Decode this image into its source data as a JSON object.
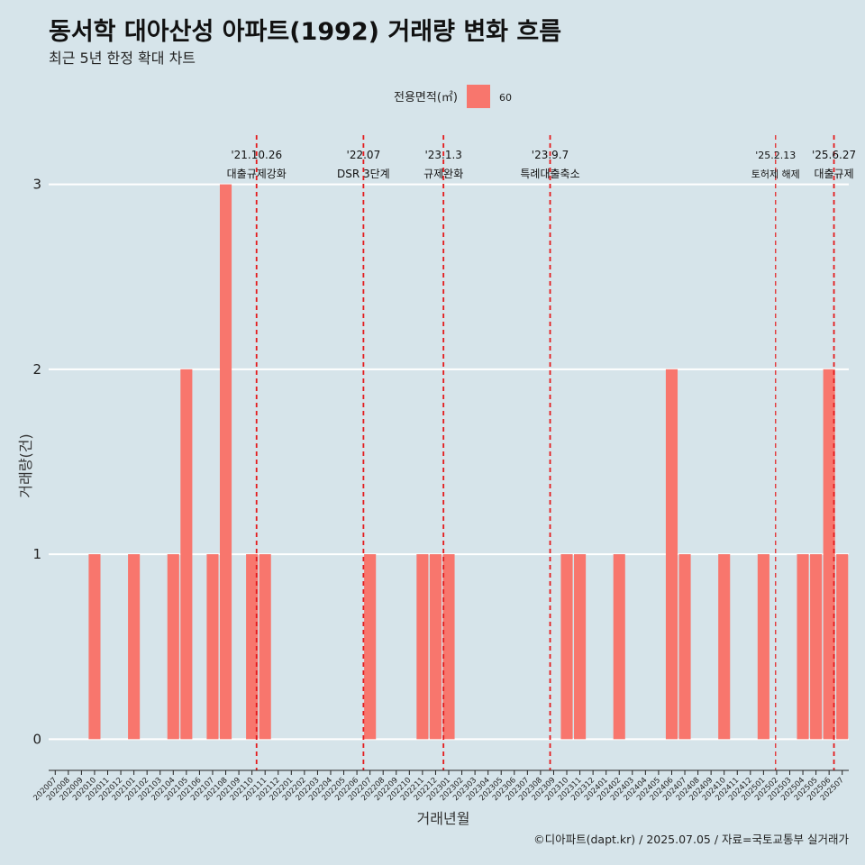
{
  "title": "동서학 대아산성 아파트(1992) 거래량 변화 흐름",
  "subtitle": "최근 5년 한정 확대 차트",
  "caption": "©디아파트(dapt.kr) / 2025.07.05 / 자료=국토교통부 실거래가",
  "colors": {
    "background": "#d6e4ea",
    "bar": "#f8766d",
    "event_line": "#e41a1c",
    "grid": "#ffffff"
  },
  "chart_data": {
    "type": "bar",
    "xlabel": "거래년월",
    "ylabel": "거래량(건)",
    "ylim": [
      -0.13,
      3.3
    ],
    "yticks": [
      0,
      1,
      2,
      3
    ],
    "grid": "horizontal-major",
    "legend": {
      "title": "전용면적(㎡)",
      "position": "top",
      "entries": [
        {
          "label": "60",
          "color": "#f8766d"
        }
      ]
    },
    "series": [
      {
        "name": "60",
        "color": "#f8766d"
      }
    ],
    "categories": [
      "202007",
      "202008",
      "202009",
      "202010",
      "202011",
      "202012",
      "202101",
      "202102",
      "202103",
      "202104",
      "202105",
      "202106",
      "202107",
      "202108",
      "202109",
      "202110",
      "202111",
      "202112",
      "202201",
      "202202",
      "202203",
      "202204",
      "202205",
      "202206",
      "202207",
      "202208",
      "202209",
      "202210",
      "202211",
      "202212",
      "202301",
      "202302",
      "202303",
      "202304",
      "202305",
      "202306",
      "202307",
      "202308",
      "202309",
      "202310",
      "202311",
      "202312",
      "202401",
      "202402",
      "202403",
      "202404",
      "202405",
      "202406",
      "202407",
      "202408",
      "202409",
      "202410",
      "202411",
      "202412",
      "202501",
      "202502",
      "202503",
      "202504",
      "202505",
      "202506",
      "202507"
    ],
    "values": [
      0,
      0,
      0,
      1,
      0,
      0,
      1,
      0,
      0,
      1,
      2,
      0,
      1,
      3,
      0,
      1,
      1,
      0,
      0,
      0,
      0,
      0,
      0,
      0,
      1,
      0,
      0,
      0,
      1,
      1,
      1,
      0,
      0,
      0,
      0,
      0,
      0,
      0,
      0,
      1,
      1,
      0,
      0,
      1,
      0,
      0,
      0,
      2,
      1,
      0,
      0,
      1,
      0,
      0,
      1,
      0,
      0,
      1,
      1,
      2,
      1
    ],
    "events": [
      {
        "date": "'21.10.26",
        "label": "대출규제강화",
        "x": "202110",
        "offset": 0.85
      },
      {
        "date": "'22.07",
        "label": "DSR 3단계",
        "x": "202207",
        "offset": 0.0
      },
      {
        "date": "'23.1.3",
        "label": "규제완화",
        "x": "202301",
        "offset": 0.1
      },
      {
        "date": "'23.9.7",
        "label": "특례대출축소",
        "x": "202309",
        "offset": 0.23
      },
      {
        "date": "'25.2.13",
        "label": "토허제 해제",
        "x": "202502",
        "offset": 0.42,
        "style": "thin"
      },
      {
        "date": "'25.6.27",
        "label": "대출규제",
        "x": "202506",
        "offset": 0.87
      }
    ]
  }
}
